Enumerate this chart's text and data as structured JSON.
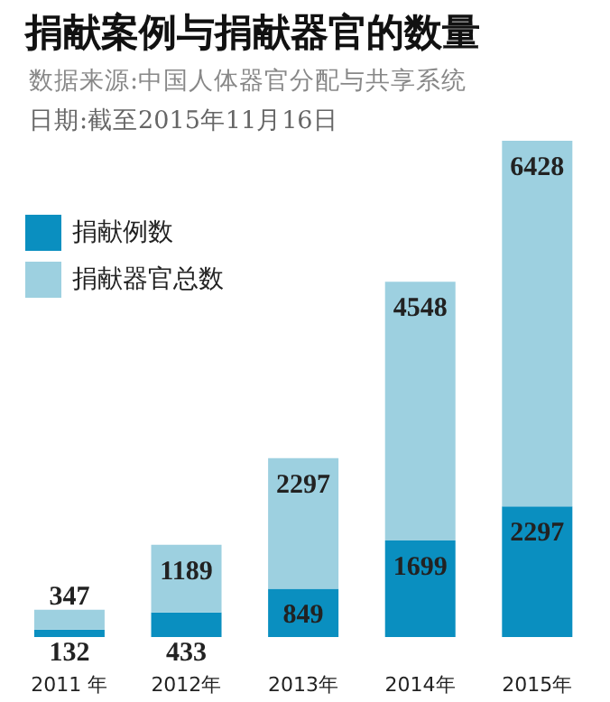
{
  "chart_data": {
    "type": "bar",
    "title": "捐献案例与捐献器官的数量",
    "subtitle": "数据来源:中国人体器官分配与共享系统",
    "annotations": [
      "日期:截至2015年11月16日"
    ],
    "categories": [
      "2011 年",
      "2012年",
      "2013年",
      "2014年",
      "2015年"
    ],
    "stacked": true,
    "data_labels": true,
    "legend": "top left",
    "series": [
      {
        "name": "捐献例数",
        "color": "#0a8fc0",
        "values": [
          132,
          433,
          849,
          1699,
          2297
        ]
      },
      {
        "name": "捐献器官总数",
        "color": "#9dd0e0",
        "values": [
          347,
          1189,
          2297,
          4548,
          6428
        ]
      }
    ]
  }
}
